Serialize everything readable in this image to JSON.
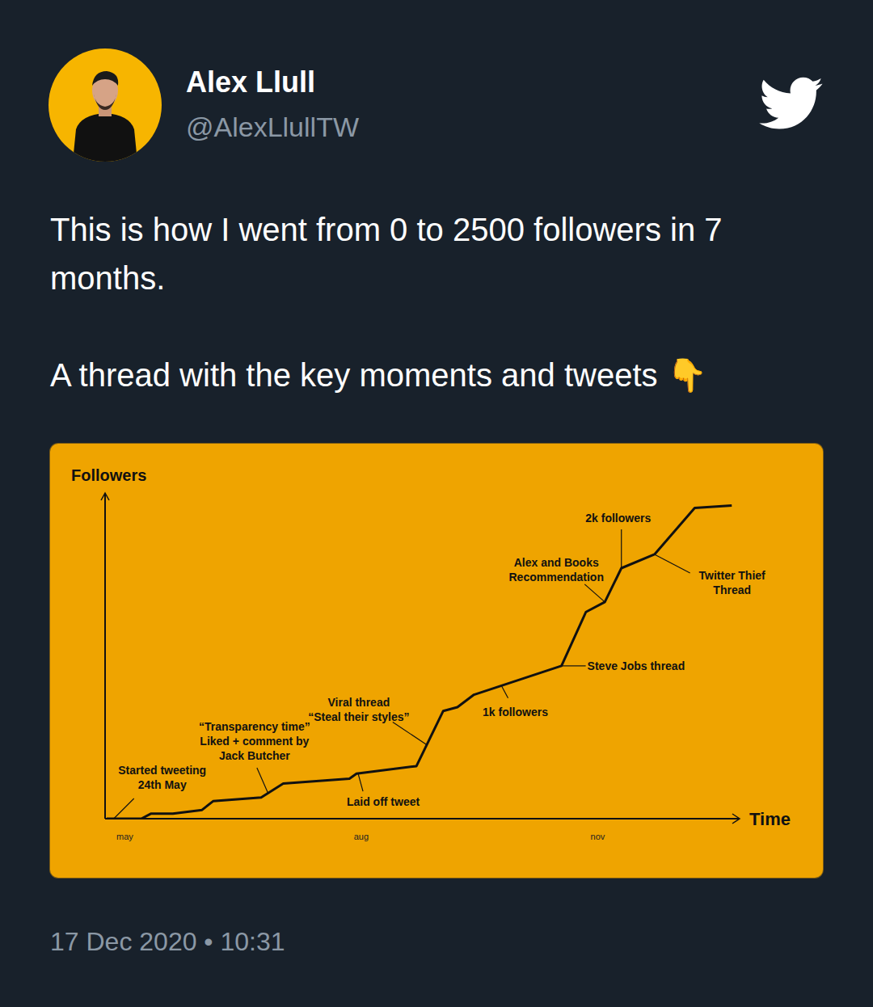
{
  "tweet": {
    "name": "Alex Llull",
    "handle": "@AlexLlullTW",
    "text": [
      "This is how I went from 0 to 2500 followers in 7 months.",
      "A thread with the key moments and tweets 👇"
    ],
    "timestamp": "17 Dec 2020 • 10:31"
  },
  "chart_data": {
    "type": "line",
    "x_label": "Time",
    "y_label": "Followers",
    "x": [
      -0.23,
      0.21,
      0.33,
      0.61,
      0.98,
      1.12,
      1.73,
      2.01,
      2.85,
      2.94,
      3.7,
      4.04,
      4.22,
      4.43,
      5.54,
      5.85,
      6.09,
      6.3,
      6.72,
      7.23,
      7.7
    ],
    "values": [
      0,
      0,
      40,
      40,
      70,
      140,
      170,
      280,
      320,
      360,
      420,
      860,
      890,
      990,
      1220,
      1650,
      1730,
      2000,
      2110,
      2480,
      2500
    ],
    "xlim": [
      -0.25,
      7.8
    ],
    "xticks": [
      {
        "value": 0,
        "label": "may"
      },
      {
        "value": 3,
        "label": "aug"
      },
      {
        "value": 6,
        "label": "nov"
      }
    ],
    "ylim": [
      0,
      2600
    ],
    "grid": false,
    "tick_labels": "x",
    "color": "#111111",
    "annotations": [
      {
        "text": [
          "Started tweeting",
          "24th May"
        ],
        "x": -0.14,
        "y": 0
      },
      {
        "text": [
          "“Transparency time”",
          "Liked + comment by",
          "Jack Butcher"
        ],
        "x": 1.82,
        "y": 200
      },
      {
        "text": [
          "Viral thread",
          "“Steal their styles”"
        ],
        "x": 3.83,
        "y": 590
      },
      {
        "text": [
          "Laid off tweet"
        ],
        "x": 2.96,
        "y": 360
      },
      {
        "text": [
          "1k followers"
        ],
        "x": 4.78,
        "y": 1060
      },
      {
        "text": [
          "Steve Jobs thread"
        ],
        "x": 5.54,
        "y": 1220
      },
      {
        "text": [
          "Alex and Books",
          "Recommendation"
        ],
        "x": 6.09,
        "y": 1730
      },
      {
        "text": [
          "2k followers"
        ],
        "x": 6.3,
        "y": 2000
      },
      {
        "text": [
          "Twitter Thief",
          "Thread"
        ],
        "x": 6.72,
        "y": 2110
      }
    ]
  }
}
